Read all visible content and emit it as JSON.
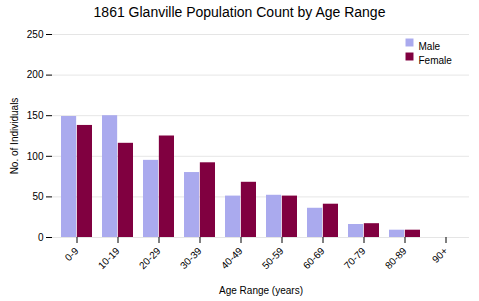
{
  "chart_data": {
    "type": "bar",
    "title": "1861 Glanville Population Count by Age Range",
    "xlabel": "Age Range (years)",
    "ylabel": "No. of Individuals",
    "categories": [
      "0-9",
      "10-19",
      "20-29",
      "30-39",
      "40-49",
      "50-59",
      "60-69",
      "70-79",
      "80-89",
      "90+"
    ],
    "series": [
      {
        "name": "Male",
        "color": "#aaaaee",
        "values": [
          149,
          150,
          95,
          80,
          51,
          52,
          36,
          16,
          9,
          0
        ]
      },
      {
        "name": "Female",
        "color": "#800040",
        "values": [
          138,
          116,
          125,
          92,
          68,
          51,
          41,
          17,
          9,
          0
        ]
      }
    ],
    "ylim": [
      0,
      250
    ],
    "yticks": [
      0,
      50,
      100,
      150,
      200,
      250
    ],
    "grid": true,
    "legend": "upper right"
  }
}
